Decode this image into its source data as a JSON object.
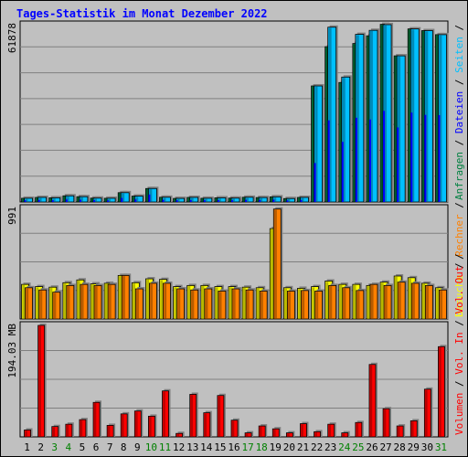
{
  "chart_data": {
    "title": "Tages-Statistik im Monat Dezember 2022",
    "x": [
      "1",
      "2",
      "3",
      "4",
      "5",
      "6",
      "7",
      "8",
      "9",
      "10",
      "11",
      "12",
      "13",
      "14",
      "15",
      "16",
      "17",
      "18",
      "19",
      "20",
      "21",
      "22",
      "23",
      "24",
      "25",
      "26",
      "27",
      "28",
      "29",
      "30",
      "31"
    ],
    "weekend_days": [
      "3",
      "4",
      "10",
      "11",
      "17",
      "18",
      "24",
      "25",
      "31"
    ],
    "colors": {
      "title": "#0000ff",
      "anfragen": "#008040",
      "dateien": "#0000ff",
      "seiten": "#00c0ff",
      "besuche": "#ffff00",
      "rechner": "#ff8000",
      "volumen": "#ff0000",
      "weekend_label": "#008000",
      "background": "#c0c0c0"
    },
    "charts": [
      {
        "type": "bar",
        "ymax": 61878,
        "ylabel": "61878",
        "legend": [
          "Anfragen",
          "/",
          "Dateien",
          "/",
          "Seiten",
          "/"
        ],
        "series": [
          {
            "name": "Anfragen",
            "values": [
              1300,
              1600,
              1450,
              2150,
              1850,
              1350,
              1300,
              3250,
              2050,
              4700,
              1650,
              1250,
              1600,
              1300,
              1450,
              1350,
              1650,
              1550,
              1800,
              1200,
              1600,
              40500,
              54200,
              41700,
              55300,
              58000,
              62000,
              51000,
              60400,
              59800,
              58400
            ]
          },
          {
            "name": "Dateien",
            "values": [
              600,
              700,
              600,
              900,
              800,
              600,
              550,
              1400,
              900,
              2600,
              750,
              600,
              700,
              600,
              650,
              600,
              750,
              700,
              800,
              550,
              700,
              13600,
              28500,
              21000,
              29400,
              28800,
              31800,
              26000,
              31200,
              30400,
              30300
            ]
          },
          {
            "name": "Seiten",
            "values": [
              1300,
              1600,
              1450,
              2150,
              1850,
              1350,
              1300,
              3250,
              2050,
              4700,
              1650,
              1250,
              1600,
              1300,
              1450,
              1350,
              1650,
              1550,
              1800,
              1200,
              1600,
              40500,
              61000,
              43600,
              58500,
              59900,
              61878,
              51000,
              60400,
              59800,
              58400
            ]
          }
        ]
      },
      {
        "type": "bar",
        "ymax": 991,
        "ylabel": "991",
        "legend": [
          "Besuche",
          "/",
          "Rechner",
          "/"
        ],
        "series": [
          {
            "name": "Besuche",
            "values": [
              310,
              290,
              285,
              325,
              350,
              315,
              320,
              390,
              325,
              360,
              355,
              290,
              300,
              300,
              290,
              290,
              285,
              280,
              810,
              280,
              275,
              290,
              340,
              310,
              310,
              300,
              330,
              385,
              370,
              320,
              280
            ]
          },
          {
            "name": "Rechner",
            "values": [
              280,
              260,
              240,
              300,
              310,
              300,
              310,
              390,
              270,
              320,
              320,
              270,
              260,
              270,
              250,
              270,
              260,
              250,
              985,
              250,
              255,
              250,
              300,
              280,
              255,
              310,
              300,
              330,
              320,
              300,
              260
            ]
          }
        ]
      },
      {
        "type": "bar",
        "ymax": 194.03,
        "ylabel": "194.03 MB",
        "legend": [
          "Volumen",
          "/",
          "Vol. In",
          "/",
          "Vol. Out",
          "/"
        ],
        "series": [
          {
            "name": "Volumen",
            "values": [
              12,
              194,
              18,
              22,
              30,
              60,
              20,
              40,
              45,
              36,
              80,
              6,
              74,
              42,
              72,
              29,
              7,
              19,
              14,
              7,
              23,
              9,
              22,
              7,
              25,
              126,
              49,
              19,
              28,
              83,
              157
            ]
          }
        ]
      }
    ]
  }
}
